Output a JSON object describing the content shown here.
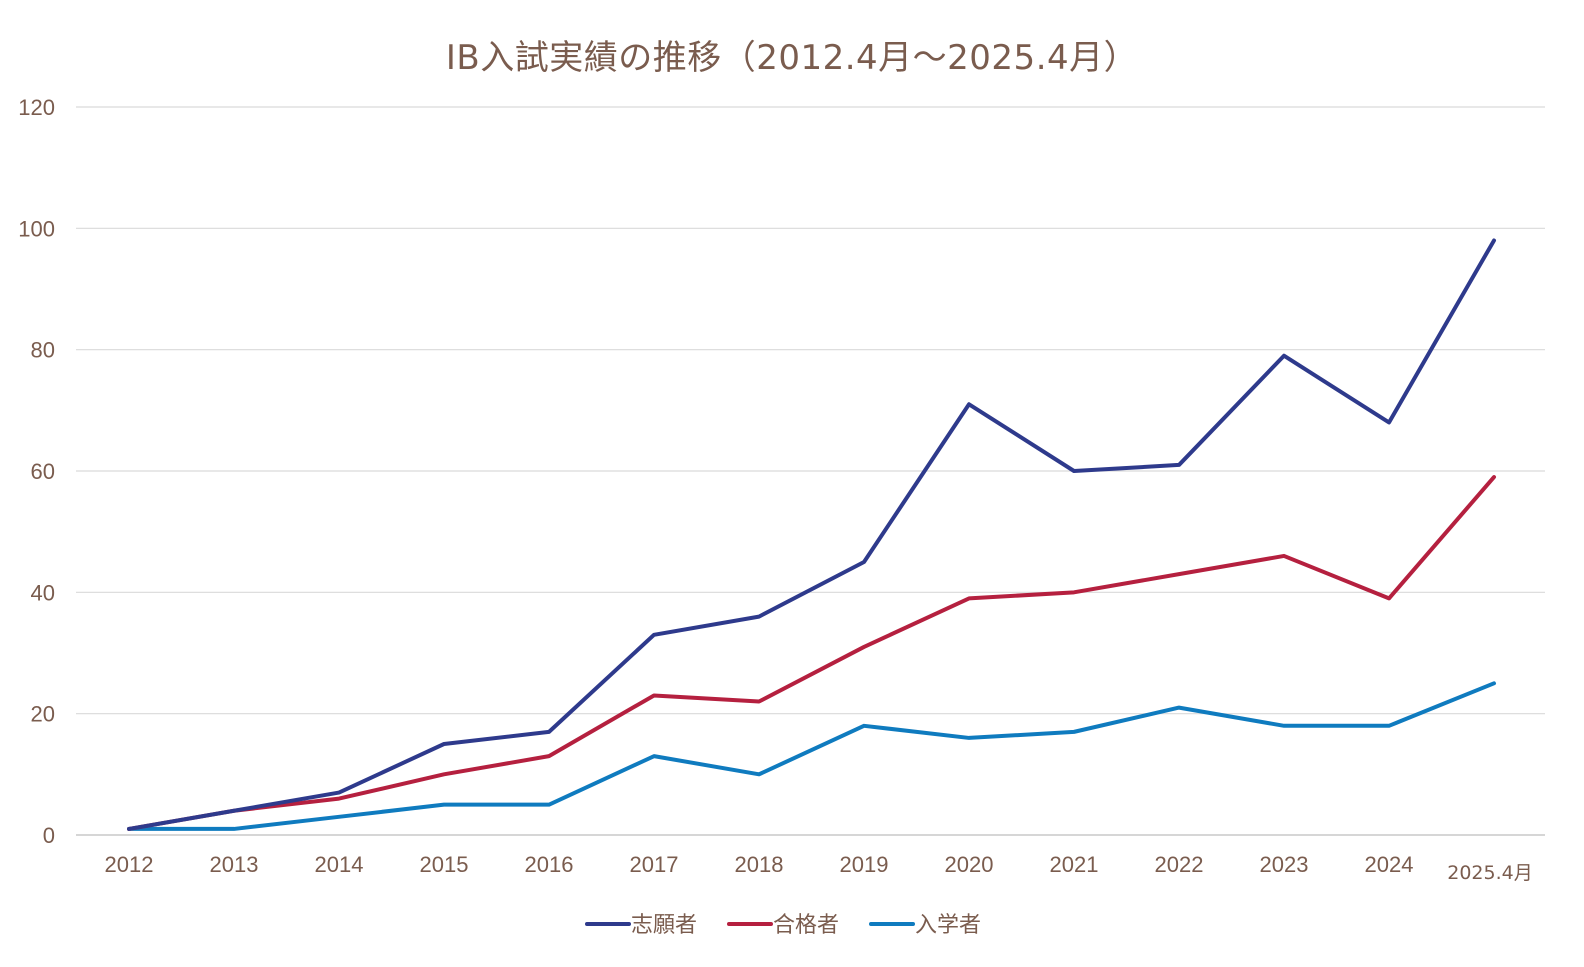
{
  "chart_data": {
    "type": "line",
    "title": "IB入試実績の推移（2012.4月～2025.4月）",
    "categories": [
      "2012",
      "2013",
      "2014",
      "2015",
      "2016",
      "2017",
      "2018",
      "2019",
      "2020",
      "2021",
      "2022",
      "2023",
      "2024",
      "2025.4月"
    ],
    "ylim": [
      0,
      120
    ],
    "yticks": [
      0,
      20,
      40,
      60,
      80,
      100,
      120
    ],
    "grid": true,
    "legend_position": "bottom",
    "series": [
      {
        "name": "志願者",
        "color": "#2e3a8c",
        "values": [
          1,
          4,
          7,
          15,
          17,
          33,
          36,
          45,
          71,
          60,
          61,
          79,
          68,
          98
        ]
      },
      {
        "name": "合格者",
        "color": "#b5203f",
        "values": [
          1,
          4,
          6,
          10,
          13,
          23,
          22,
          31,
          39,
          40,
          43,
          46,
          39,
          59
        ]
      },
      {
        "name": "入学者",
        "color": "#0f7bbf",
        "values": [
          1,
          1,
          3,
          5,
          5,
          13,
          10,
          18,
          16,
          17,
          21,
          18,
          18,
          25
        ]
      }
    ]
  }
}
